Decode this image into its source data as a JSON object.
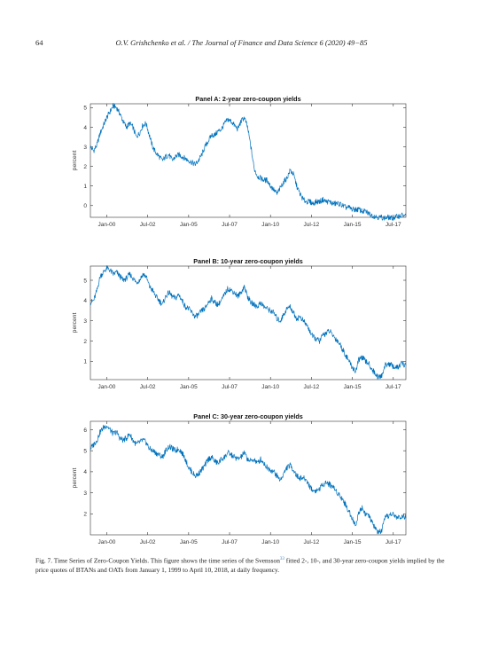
{
  "header": {
    "page_number": "64",
    "running_title": "O.V. Grishchenko et al. / The Journal of Finance and Data Science 6 (2020) 49−85"
  },
  "chart_data": [
    {
      "type": "line",
      "title": "Panel A: 2-year zero-coupon yields",
      "xlabel": "",
      "ylabel": "percent",
      "x_tick_labels": [
        "Jan-00",
        "Jul-02",
        "Jan-05",
        "Jul-07",
        "Jan-10",
        "Jul-12",
        "Jan-15",
        "Jul-17"
      ],
      "x_tick_values": [
        2000.0,
        2002.5,
        2005.0,
        2007.5,
        2010.0,
        2012.5,
        2015.0,
        2017.5
      ],
      "xlim": [
        1999.0,
        2018.27
      ],
      "y_ticks": [
        0,
        1,
        2,
        3,
        4,
        5
      ],
      "ylim": [
        -0.6,
        5.2
      ],
      "grid": false,
      "line_color": "#0072BD",
      "series": [
        {
          "x": [
            1999.0,
            1999.2,
            1999.4,
            1999.6,
            1999.8,
            2000.0,
            2000.2,
            2000.4,
            2000.6,
            2000.8,
            2001.0,
            2001.2,
            2001.4,
            2001.6,
            2001.8,
            2002.0,
            2002.2,
            2002.4,
            2002.6,
            2002.8,
            2003.0,
            2003.2,
            2003.4,
            2003.6,
            2003.8,
            2004.0,
            2004.2,
            2004.4,
            2004.6,
            2004.8,
            2005.0,
            2005.2,
            2005.4,
            2005.6,
            2005.8,
            2006.0,
            2006.2,
            2006.4,
            2006.6,
            2006.8,
            2007.0,
            2007.2,
            2007.4,
            2007.6,
            2007.8,
            2008.0,
            2008.2,
            2008.4,
            2008.6,
            2008.8,
            2009.0,
            2009.2,
            2009.4,
            2009.6,
            2009.8,
            2010.0,
            2010.2,
            2010.4,
            2010.6,
            2010.8,
            2011.0,
            2011.2,
            2011.4,
            2011.6,
            2011.8,
            2012.0,
            2012.2,
            2012.4,
            2012.6,
            2012.8,
            2013.0,
            2013.2,
            2013.4,
            2013.6,
            2013.8,
            2014.0,
            2014.2,
            2014.4,
            2014.6,
            2014.8,
            2015.0,
            2015.2,
            2015.4,
            2015.6,
            2015.8,
            2016.0,
            2016.2,
            2016.4,
            2016.6,
            2016.8,
            2017.0,
            2017.2,
            2017.4,
            2017.6,
            2017.8,
            2018.0,
            2018.27
          ],
          "values": [
            3.0,
            2.8,
            3.1,
            3.7,
            4.1,
            4.5,
            4.8,
            5.1,
            5.0,
            4.7,
            4.3,
            4.0,
            4.2,
            4.0,
            3.5,
            3.7,
            4.1,
            4.2,
            3.6,
            3.0,
            2.7,
            2.5,
            2.3,
            2.5,
            2.6,
            2.3,
            2.5,
            2.6,
            2.5,
            2.4,
            2.3,
            2.2,
            2.1,
            2.3,
            2.6,
            3.0,
            3.3,
            3.6,
            3.6,
            3.8,
            3.9,
            4.2,
            4.4,
            4.3,
            4.1,
            3.9,
            4.3,
            4.5,
            4.0,
            3.0,
            1.9,
            1.5,
            1.4,
            1.3,
            1.3,
            1.0,
            0.8,
            0.6,
            0.9,
            1.2,
            1.4,
            1.8,
            1.6,
            1.0,
            0.6,
            0.3,
            0.2,
            0.2,
            0.1,
            0.2,
            0.2,
            0.3,
            0.2,
            0.2,
            0.1,
            0.1,
            0.1,
            0.0,
            -0.1,
            -0.1,
            -0.2,
            -0.2,
            -0.2,
            -0.3,
            -0.3,
            -0.4,
            -0.5,
            -0.55,
            -0.6,
            -0.6,
            -0.65,
            -0.6,
            -0.65,
            -0.6,
            -0.55,
            -0.5,
            -0.5
          ]
        }
      ]
    },
    {
      "type": "line",
      "title": "Panel B: 10-year zero-coupon yields",
      "xlabel": "",
      "ylabel": "percent",
      "x_tick_labels": [
        "Jan-00",
        "Jul-02",
        "Jan-05",
        "Jul-07",
        "Jan-10",
        "Jul-12",
        "Jan-15",
        "Jul-17"
      ],
      "x_tick_values": [
        2000.0,
        2002.5,
        2005.0,
        2007.5,
        2010.0,
        2012.5,
        2015.0,
        2017.5
      ],
      "xlim": [
        1999.0,
        2018.27
      ],
      "y_ticks": [
        1,
        2,
        3,
        4,
        5
      ],
      "ylim": [
        0.1,
        5.7
      ],
      "grid": false,
      "line_color": "#0072BD",
      "series": [
        {
          "x": [
            1999.0,
            1999.2,
            1999.4,
            1999.6,
            1999.8,
            2000.0,
            2000.2,
            2000.4,
            2000.6,
            2000.8,
            2001.0,
            2001.2,
            2001.4,
            2001.6,
            2001.8,
            2002.0,
            2002.2,
            2002.4,
            2002.6,
            2002.8,
            2003.0,
            2003.2,
            2003.4,
            2003.6,
            2003.8,
            2004.0,
            2004.2,
            2004.4,
            2004.6,
            2004.8,
            2005.0,
            2005.2,
            2005.4,
            2005.6,
            2005.8,
            2006.0,
            2006.2,
            2006.4,
            2006.6,
            2006.8,
            2007.0,
            2007.2,
            2007.4,
            2007.6,
            2007.8,
            2008.0,
            2008.2,
            2008.4,
            2008.6,
            2008.8,
            2009.0,
            2009.2,
            2009.4,
            2009.6,
            2009.8,
            2010.0,
            2010.2,
            2010.4,
            2010.6,
            2010.8,
            2011.0,
            2011.2,
            2011.4,
            2011.6,
            2011.8,
            2012.0,
            2012.2,
            2012.4,
            2012.6,
            2012.8,
            2013.0,
            2013.2,
            2013.4,
            2013.6,
            2013.8,
            2014.0,
            2014.2,
            2014.4,
            2014.6,
            2014.8,
            2015.0,
            2015.2,
            2015.4,
            2015.6,
            2015.8,
            2016.0,
            2016.2,
            2016.4,
            2016.6,
            2016.8,
            2017.0,
            2017.2,
            2017.4,
            2017.6,
            2017.8,
            2018.0,
            2018.27
          ],
          "values": [
            3.9,
            4.0,
            4.5,
            5.2,
            5.4,
            5.6,
            5.5,
            5.3,
            5.4,
            5.2,
            5.0,
            5.1,
            5.3,
            5.1,
            4.9,
            5.0,
            5.3,
            5.2,
            4.7,
            4.5,
            4.2,
            4.0,
            3.8,
            4.2,
            4.4,
            4.2,
            4.1,
            4.3,
            4.0,
            3.7,
            3.6,
            3.4,
            3.2,
            3.3,
            3.5,
            3.6,
            3.9,
            4.1,
            3.9,
            3.8,
            4.0,
            4.3,
            4.6,
            4.5,
            4.4,
            4.2,
            4.4,
            4.7,
            4.2,
            3.9,
            3.8,
            3.7,
            3.9,
            3.7,
            3.6,
            3.5,
            3.4,
            3.1,
            3.0,
            3.3,
            3.6,
            3.7,
            3.4,
            3.1,
            3.2,
            3.0,
            2.8,
            2.5,
            2.2,
            2.1,
            2.0,
            2.3,
            2.4,
            2.5,
            2.3,
            2.1,
            1.9,
            1.6,
            1.3,
            1.0,
            0.7,
            0.5,
            1.1,
            1.2,
            1.0,
            0.9,
            0.6,
            0.4,
            0.2,
            0.3,
            0.8,
            0.9,
            0.8,
            0.7,
            0.7,
            0.9,
            0.8
          ]
        }
      ]
    },
    {
      "type": "line",
      "title": "Panel C: 30-year zero-coupon yields",
      "xlabel": "",
      "ylabel": "percent",
      "x_tick_labels": [
        "Jan-00",
        "Jul-02",
        "Jan-05",
        "Jul-07",
        "Jan-10",
        "Jul-12",
        "Jan-15",
        "Jul-17"
      ],
      "x_tick_values": [
        2000.0,
        2002.5,
        2005.0,
        2007.5,
        2010.0,
        2012.5,
        2015.0,
        2017.5
      ],
      "xlim": [
        1999.0,
        2018.27
      ],
      "y_ticks": [
        2,
        3,
        4,
        5,
        6
      ],
      "ylim": [
        1.0,
        6.4
      ],
      "grid": false,
      "line_color": "#0072BD",
      "series": [
        {
          "x": [
            1999.0,
            1999.2,
            1999.4,
            1999.6,
            1999.8,
            2000.0,
            2000.2,
            2000.4,
            2000.6,
            2000.8,
            2001.0,
            2001.2,
            2001.4,
            2001.6,
            2001.8,
            2002.0,
            2002.2,
            2002.4,
            2002.6,
            2002.8,
            2003.0,
            2003.2,
            2003.4,
            2003.6,
            2003.8,
            2004.0,
            2004.2,
            2004.4,
            2004.6,
            2004.8,
            2005.0,
            2005.2,
            2005.4,
            2005.6,
            2005.8,
            2006.0,
            2006.2,
            2006.4,
            2006.6,
            2006.8,
            2007.0,
            2007.2,
            2007.4,
            2007.6,
            2007.8,
            2008.0,
            2008.2,
            2008.4,
            2008.6,
            2008.8,
            2009.0,
            2009.2,
            2009.4,
            2009.6,
            2009.8,
            2010.0,
            2010.2,
            2010.4,
            2010.6,
            2010.8,
            2011.0,
            2011.2,
            2011.4,
            2011.6,
            2011.8,
            2012.0,
            2012.2,
            2012.4,
            2012.6,
            2012.8,
            2013.0,
            2013.2,
            2013.4,
            2013.6,
            2013.8,
            2014.0,
            2014.2,
            2014.4,
            2014.6,
            2014.8,
            2015.0,
            2015.2,
            2015.4,
            2015.6,
            2015.8,
            2016.0,
            2016.2,
            2016.4,
            2016.6,
            2016.8,
            2017.0,
            2017.2,
            2017.4,
            2017.6,
            2017.8,
            2018.0,
            2018.27
          ],
          "values": [
            5.1,
            5.3,
            5.5,
            5.9,
            6.1,
            6.2,
            6.0,
            5.8,
            5.9,
            5.6,
            5.5,
            5.6,
            5.8,
            5.5,
            5.3,
            5.4,
            5.5,
            5.4,
            5.1,
            5.0,
            4.9,
            4.8,
            4.7,
            5.0,
            5.2,
            5.1,
            5.0,
            5.1,
            4.9,
            4.6,
            4.2,
            4.0,
            3.8,
            3.9,
            4.1,
            4.3,
            4.6,
            4.7,
            4.5,
            4.4,
            4.6,
            4.7,
            4.9,
            4.8,
            4.7,
            4.6,
            4.7,
            4.9,
            4.6,
            4.5,
            4.6,
            4.4,
            4.6,
            4.4,
            4.2,
            4.1,
            4.0,
            3.8,
            3.6,
            3.9,
            4.2,
            4.3,
            4.1,
            3.8,
            3.7,
            3.7,
            3.6,
            3.3,
            3.1,
            3.1,
            3.2,
            3.4,
            3.5,
            3.4,
            3.3,
            3.1,
            2.9,
            2.7,
            2.4,
            2.1,
            1.8,
            1.4,
            2.1,
            2.3,
            2.0,
            1.9,
            1.6,
            1.3,
            1.1,
            1.2,
            1.8,
            1.9,
            2.0,
            1.9,
            1.8,
            1.9,
            1.8
          ]
        }
      ]
    }
  ],
  "caption": {
    "prefix": "Fig. 7. Time Series of Zero-Coupon Yields. This figure shows the time series of the Svensson",
    "ref": "33",
    "suffix": " fitted 2-, 10-, and 30-year zero-coupon yields implied by the price quotes of BTANs and OATs from January 1, 1999 to April 10, 2018, at daily frequency."
  }
}
